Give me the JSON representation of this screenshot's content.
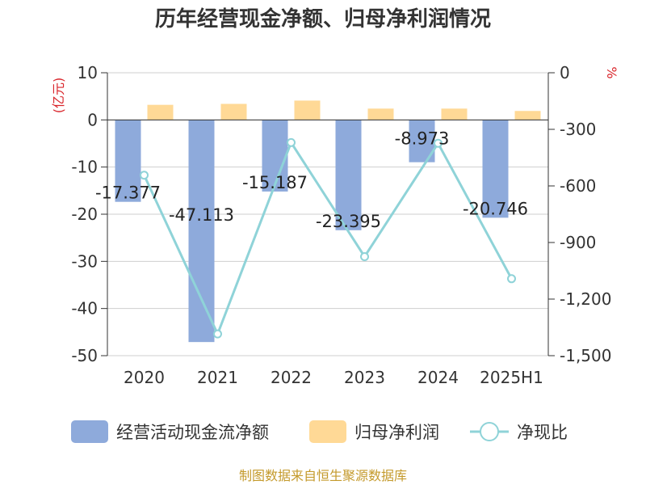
{
  "chart_data": {
    "type": "bar",
    "title": "历年经营现金净额、归母净利润情况",
    "categories": [
      "2020",
      "2021",
      "2022",
      "2023",
      "2024",
      "2025H1"
    ],
    "y_left": {
      "unit": "(亿元)",
      "ylim": [
        -50,
        10
      ],
      "ticks": [
        "10",
        "0",
        "-10",
        "-20",
        "-30",
        "-40",
        "-50"
      ]
    },
    "y_right": {
      "unit": "%",
      "ylim": [
        -1500,
        0
      ],
      "ticks": [
        "0",
        "-300",
        "-600",
        "-900",
        "-1,200",
        "-1,500"
      ]
    },
    "series": [
      {
        "name": "经营活动现金流净额",
        "type": "bar",
        "axis": "left",
        "color": "#8eaadb",
        "values": [
          -17.377,
          -47.113,
          -15.187,
          -23.395,
          -8.973,
          -20.746
        ],
        "labels": [
          "-17.377",
          "-47.113",
          "-15.187",
          "-23.395",
          "-8.973",
          "-20.746"
        ]
      },
      {
        "name": "归母净利润",
        "type": "bar",
        "axis": "left",
        "color": "#ffd996",
        "values": [
          3.2,
          3.4,
          4.1,
          2.4,
          2.4,
          1.9
        ]
      },
      {
        "name": "净现比",
        "type": "line",
        "axis": "right",
        "color": "#8fd3d8",
        "values": [
          -543,
          -1385,
          -370,
          -975,
          -374,
          -1092
        ]
      }
    ],
    "grid": true,
    "legend_position": "bottom"
  },
  "source": "制图数据来自恒生聚源数据库"
}
